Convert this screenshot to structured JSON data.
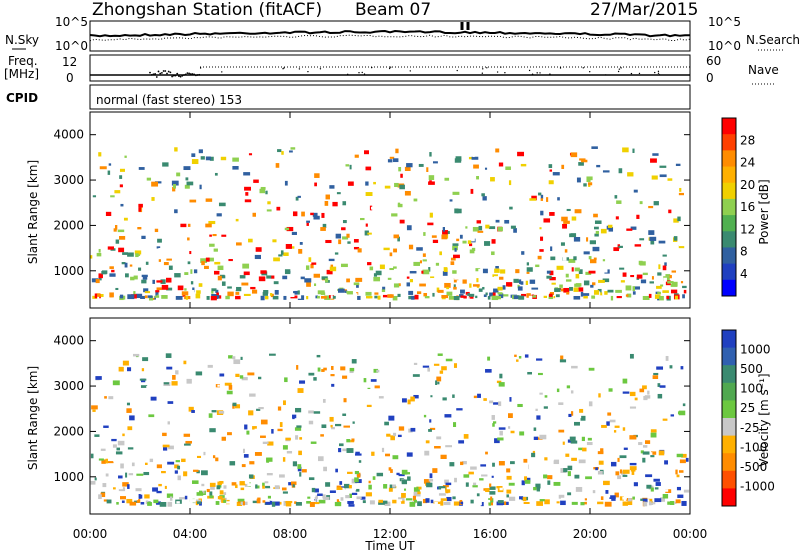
{
  "chart_data": [
    {
      "type": "line",
      "title": "Zhongshan Station (fitACF)",
      "beam": "Beam 07",
      "date": "27/Mar/2015",
      "panel_labels": {
        "left": "N.Sky",
        "right": "N.Search"
      },
      "y_ticks": [
        "10^5",
        "10^0"
      ],
      "y_ticks_right": [
        "10^5",
        "10^0"
      ],
      "series": [
        {
          "name": "N.Sky",
          "style": "solid"
        },
        {
          "name": "N.Search",
          "style": "dotted"
        }
      ]
    },
    {
      "type": "line",
      "panel_labels": {
        "left": "Freq.",
        "left_unit": "[MHz]",
        "right": "Nave"
      },
      "y_ticks_left": [
        "12",
        "8"
      ],
      "y_ticks_right": [
        "60",
        "0"
      ],
      "series": [
        {
          "name": "Freq.",
          "style": "solid"
        },
        {
          "name": "Nave",
          "style": "dotted"
        }
      ]
    },
    {
      "type": "table",
      "label": "CPID",
      "value": "normal (fast stereo) 153"
    },
    {
      "type": "heatmap",
      "ylabel": "Slant Range [km]",
      "ylim": [
        180,
        4500
      ],
      "y_ticks": [
        1000,
        2000,
        3000,
        4000
      ],
      "colorbar_label": "Power [dB]",
      "colorbar_ticks": [
        "28",
        "24",
        "20",
        "16",
        "12",
        "8",
        "4"
      ],
      "colorbar_colors": [
        "#ff0000",
        "#ff4000",
        "#ff8c00",
        "#ffb000",
        "#f0d000",
        "#8fd050",
        "#50b050",
        "#3a8a70",
        "#3060a0",
        "#2040c0",
        "#0000ff"
      ]
    },
    {
      "type": "heatmap",
      "ylabel": "Slant Range [km]",
      "xlabel": "Time UT",
      "x_ticks": [
        "00:00",
        "04:00",
        "08:00",
        "12:00",
        "16:00",
        "20:00",
        "00:00"
      ],
      "ylim": [
        180,
        4500
      ],
      "y_ticks": [
        1000,
        2000,
        3000,
        4000
      ],
      "colorbar_label": "Velocity [m s⁻¹]",
      "colorbar_ticks": [
        "1000",
        "500",
        "100",
        "25",
        "-25",
        "-100",
        "-500",
        "-1000"
      ],
      "colorbar_colors": [
        "#2040c0",
        "#3060b0",
        "#3a8a70",
        "#50a850",
        "#6cc840",
        "#c8c8c8",
        "#ffb000",
        "#ff8c00",
        "#ff5000",
        "#ff0000"
      ]
    }
  ]
}
